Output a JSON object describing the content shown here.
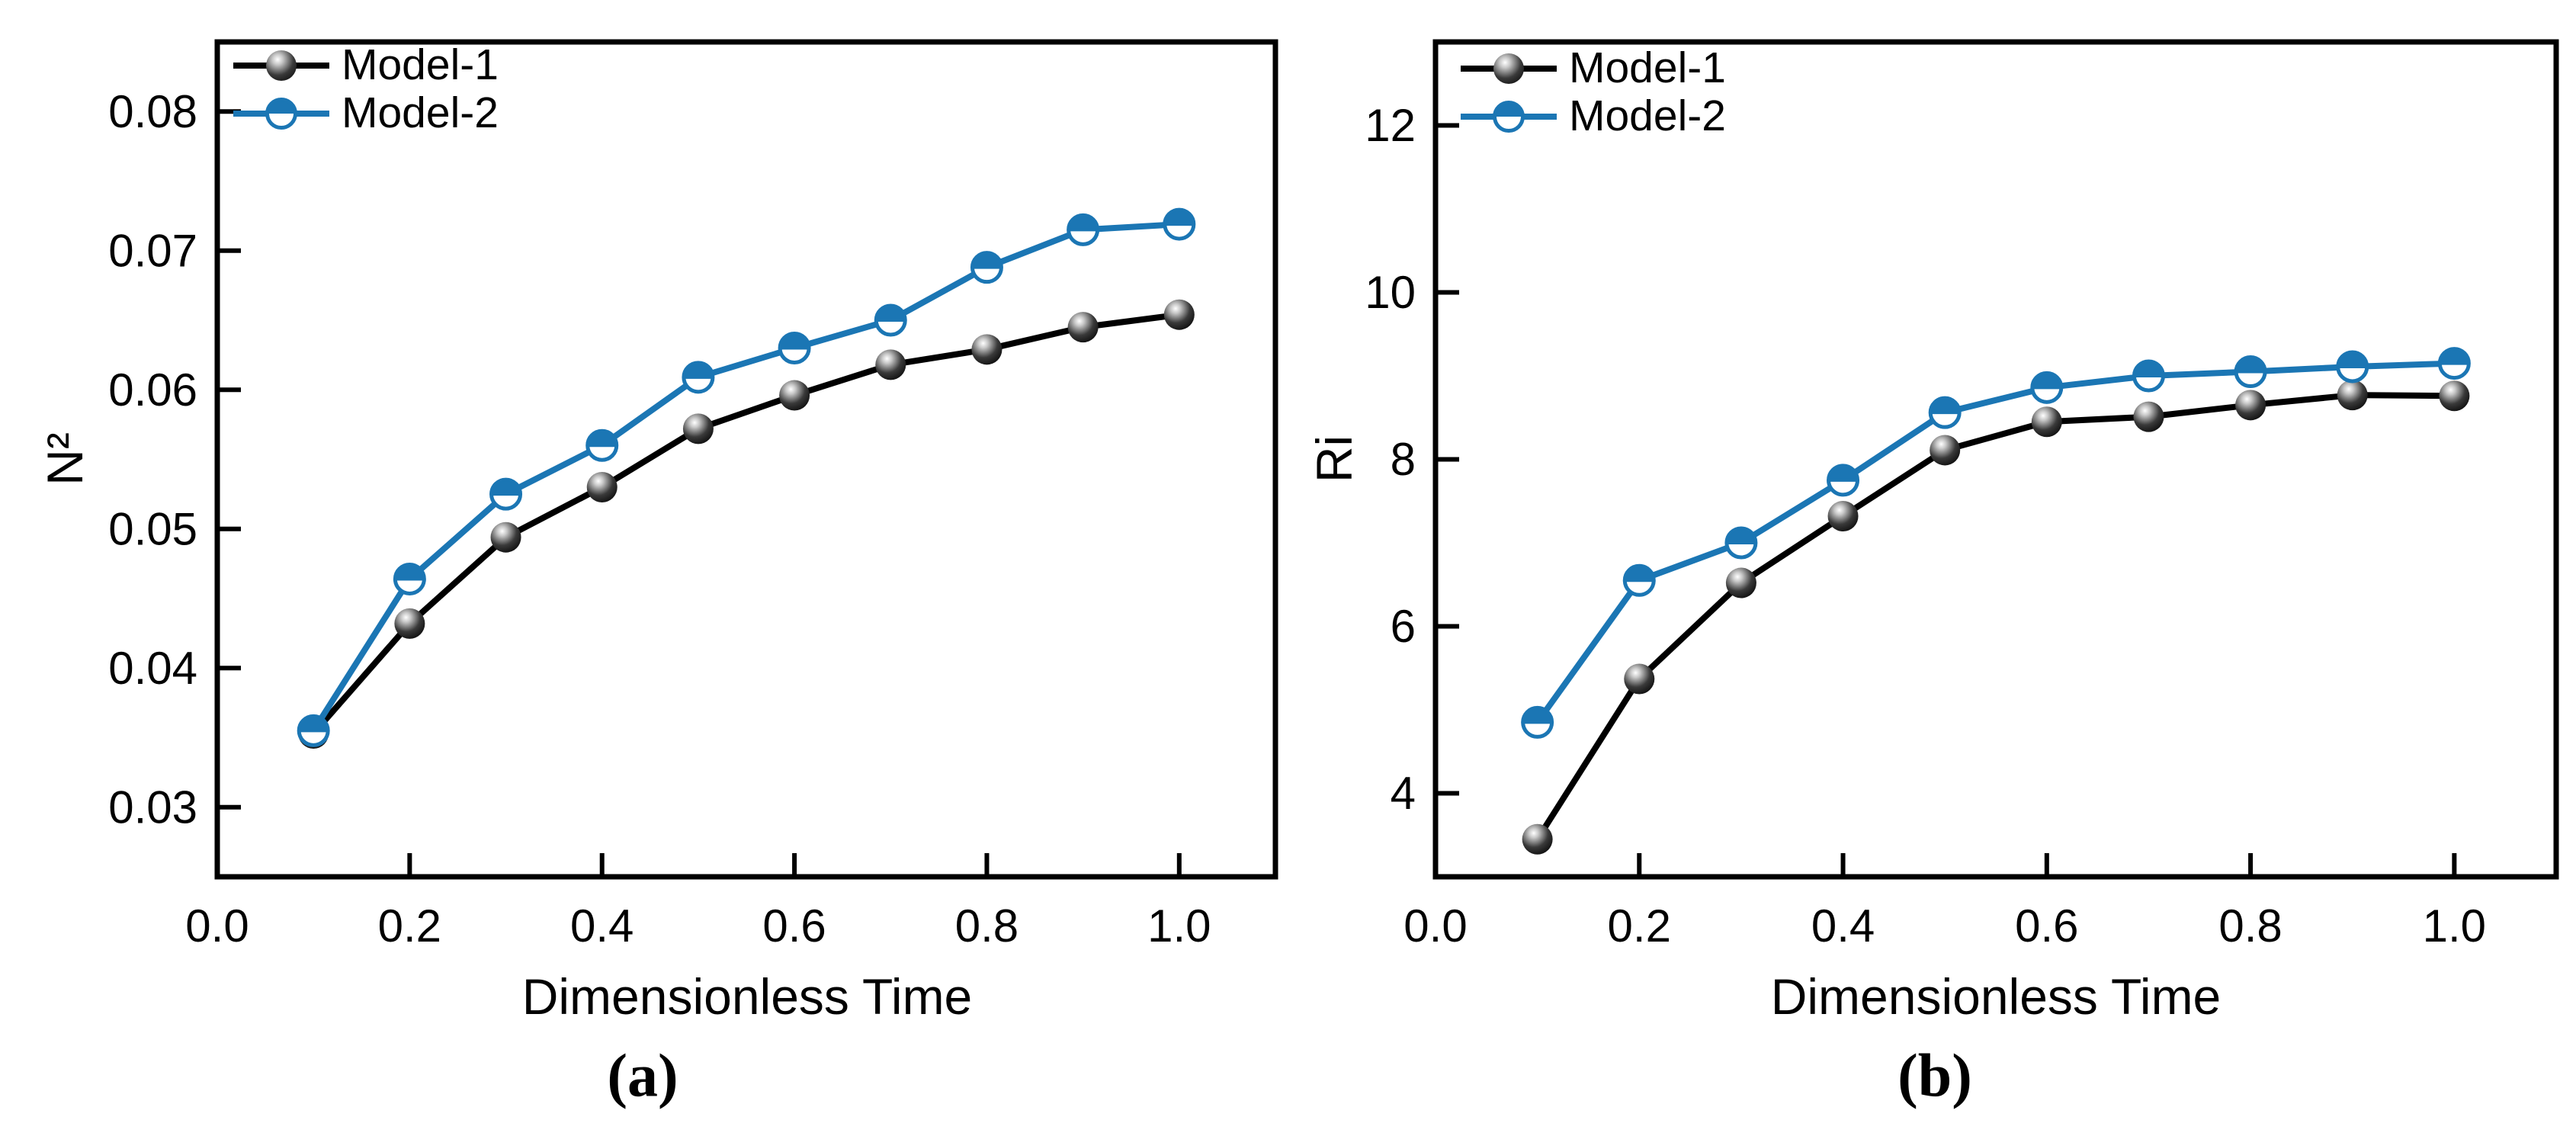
{
  "figure": {
    "background": "#ffffff"
  },
  "colors": {
    "model1": "#000000",
    "model2": "#1b76b4",
    "axis": "#000000",
    "text": "#000000"
  },
  "chart_data": [
    {
      "id": "a",
      "type": "line",
      "caption": "(a)",
      "xlabel": "Dimensionless Time",
      "ylabel": "N²",
      "legend_position": "top-left",
      "grid": false,
      "x": [
        0.1,
        0.2,
        0.3,
        0.4,
        0.5,
        0.6,
        0.7,
        0.8,
        0.9,
        1.0
      ],
      "xlim": [
        0,
        1.1
      ],
      "ylim": [
        0.025,
        0.085
      ],
      "xticks": {
        "values": [
          0.0,
          0.2,
          0.4,
          0.6,
          0.8,
          1.0
        ],
        "labels": [
          "0.0",
          "0.2",
          "0.4",
          "0.6",
          "0.8",
          "1.0"
        ]
      },
      "yticks": {
        "values": [
          0.03,
          0.04,
          0.05,
          0.06,
          0.07,
          0.08
        ],
        "labels": [
          "0.03",
          "0.04",
          "0.05",
          "0.06",
          "0.07",
          "0.08"
        ]
      },
      "series": [
        {
          "name": "Model-1",
          "color": "#000000",
          "marker": "sphere",
          "values": [
            0.0353,
            0.0432,
            0.0494,
            0.053,
            0.0572,
            0.0596,
            0.0618,
            0.0629,
            0.0645,
            0.0654
          ]
        },
        {
          "name": "Model-2",
          "color": "#1b76b4",
          "marker": "half-filled-circle",
          "values": [
            0.0355,
            0.0464,
            0.0525,
            0.056,
            0.0609,
            0.063,
            0.065,
            0.0688,
            0.0715,
            0.0719
          ]
        }
      ]
    },
    {
      "id": "b",
      "type": "line",
      "caption": "(b)",
      "xlabel": "Dimensionless Time",
      "ylabel": "Ri",
      "legend_position": "top-left",
      "grid": false,
      "x": [
        0.1,
        0.2,
        0.3,
        0.4,
        0.5,
        0.6,
        0.7,
        0.8,
        0.9,
        1.0
      ],
      "xlim": [
        0,
        1.1
      ],
      "ylim": [
        3,
        13
      ],
      "xticks": {
        "values": [
          0.0,
          0.2,
          0.4,
          0.6,
          0.8,
          1.0
        ],
        "labels": [
          "0.0",
          "0.2",
          "0.4",
          "0.6",
          "0.8",
          "1.0"
        ]
      },
      "yticks": {
        "values": [
          4,
          6,
          8,
          10,
          12
        ],
        "labels": [
          "4",
          "6",
          "8",
          "10",
          "12"
        ]
      },
      "series": [
        {
          "name": "Model-1",
          "color": "#000000",
          "marker": "sphere",
          "values": [
            3.45,
            5.37,
            6.52,
            7.32,
            8.11,
            8.45,
            8.51,
            8.65,
            8.77,
            8.76
          ]
        },
        {
          "name": "Model-2",
          "color": "#1b76b4",
          "marker": "half-filled-circle",
          "values": [
            4.85,
            6.55,
            7.0,
            7.75,
            8.56,
            8.86,
            9.0,
            9.05,
            9.11,
            9.15
          ]
        }
      ]
    }
  ]
}
